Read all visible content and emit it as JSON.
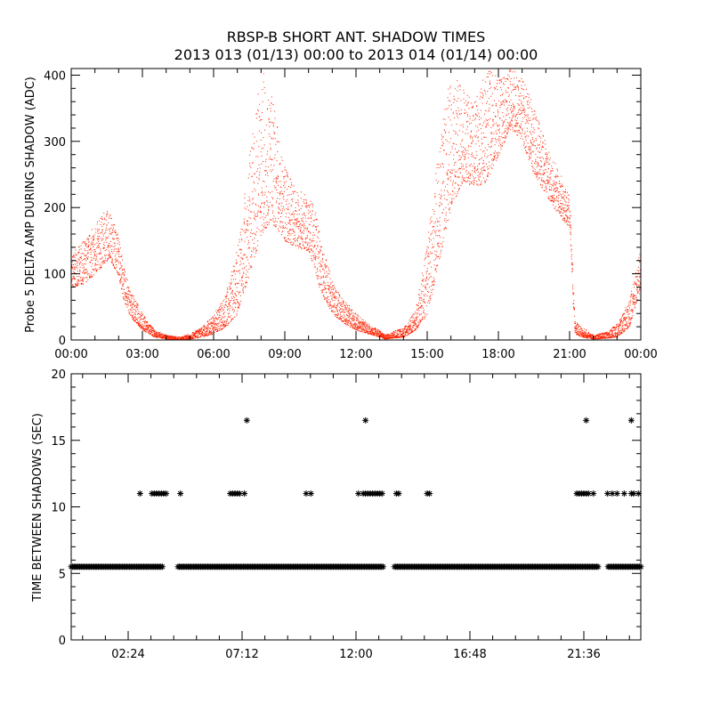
{
  "title": "RBSP-B SHORT ANT. SHADOW TIMES",
  "subtitle": "2013 013 (01/13) 00:00 to 2013 014 (01/14) 00:00",
  "colors": {
    "top_points": "#ff2200",
    "bottom_points": "#000000",
    "axes": "#000000",
    "background": "#ffffff"
  },
  "chart_data": [
    {
      "type": "scatter",
      "ylabel": "Probe 5 DELTA AMP DURING SHADOW (ADC)",
      "xlabel": "",
      "xlim_hours": [
        0,
        24
      ],
      "ylim": [
        0,
        410
      ],
      "x_tick_labels": [
        "00:00",
        "03:00",
        "06:00",
        "09:00",
        "12:00",
        "15:00",
        "18:00",
        "21:00",
        "00:00"
      ],
      "y_ticks": [
        0,
        100,
        200,
        300,
        400
      ],
      "grid": false,
      "series": [
        {
          "marker": "dot",
          "envelope_hours": [
            0.0,
            0.5,
            1.0,
            1.5,
            1.6,
            2.0,
            2.2,
            2.5,
            3.0,
            3.5,
            4.0,
            4.6,
            5.0,
            5.5,
            6.0,
            6.5,
            7.0,
            7.5,
            8.0,
            8.4,
            9.0,
            9.5,
            10.0,
            10.3,
            10.5,
            11.0,
            11.5,
            12.0,
            12.5,
            13.0,
            13.2,
            14.0,
            14.5,
            15.0,
            15.5,
            16.0,
            16.5,
            17.0,
            17.5,
            18.0,
            18.5,
            19.0,
            19.5,
            20.0,
            20.5,
            21.0,
            21.2,
            21.5,
            22.0,
            22.5,
            23.0,
            23.5,
            24.0
          ],
          "envelope_min": [
            80,
            85,
            100,
            120,
            125,
            95,
            60,
            35,
            15,
            5,
            2,
            0,
            2,
            5,
            10,
            20,
            40,
            100,
            160,
            180,
            150,
            140,
            135,
            100,
            70,
            40,
            25,
            15,
            10,
            5,
            2,
            5,
            15,
            40,
            120,
            200,
            240,
            230,
            240,
            280,
            320,
            300,
            250,
            220,
            190,
            170,
            10,
            5,
            2,
            3,
            5,
            20,
            80
          ],
          "envelope_max": [
            130,
            150,
            175,
            200,
            195,
            160,
            110,
            75,
            40,
            15,
            8,
            5,
            10,
            20,
            40,
            70,
            140,
            280,
            410,
            380,
            260,
            230,
            215,
            200,
            150,
            90,
            60,
            40,
            25,
            15,
            8,
            20,
            45,
            150,
            300,
            410,
            380,
            360,
            410,
            400,
            410,
            400,
            350,
            300,
            260,
            220,
            30,
            20,
            8,
            12,
            25,
            60,
            140
          ]
        }
      ]
    },
    {
      "type": "scatter",
      "ylabel": "TIME BETWEEN SHADOWS (SEC)",
      "xlabel": "",
      "xlim_hours": [
        0,
        24
      ],
      "ylim": [
        0,
        20
      ],
      "x_tick_labels": [
        "02:24",
        "07:12",
        "12:00",
        "16:48",
        "21:36"
      ],
      "x_tick_hours": [
        2.4,
        7.2,
        12.0,
        16.8,
        21.6
      ],
      "y_ticks": [
        0,
        5,
        10,
        15,
        20
      ],
      "grid": false,
      "series": [
        {
          "marker": "asterisk",
          "baseline_value": 5.5,
          "baseline_gaps_hours": [
            [
              3.9,
              4.5
            ],
            [
              13.2,
              13.6
            ],
            [
              22.2,
              22.6
            ]
          ],
          "points_11": [
            2.9,
            3.4,
            3.5,
            3.6,
            3.7,
            3.8,
            3.9,
            4.0,
            4.6,
            6.7,
            6.8,
            6.9,
            7.0,
            7.1,
            7.3,
            9.9,
            10.1,
            12.1,
            12.3,
            12.4,
            12.5,
            12.6,
            12.7,
            12.8,
            12.9,
            13.0,
            13.1,
            13.7,
            13.8,
            15.0,
            15.1,
            21.3,
            21.4,
            21.5,
            21.6,
            21.7,
            21.8,
            22.0,
            22.6,
            22.8,
            23.0,
            23.3,
            23.6,
            23.7,
            23.9
          ],
          "points_16_5": [
            7.4,
            12.4,
            21.7,
            23.6
          ]
        }
      ]
    }
  ]
}
